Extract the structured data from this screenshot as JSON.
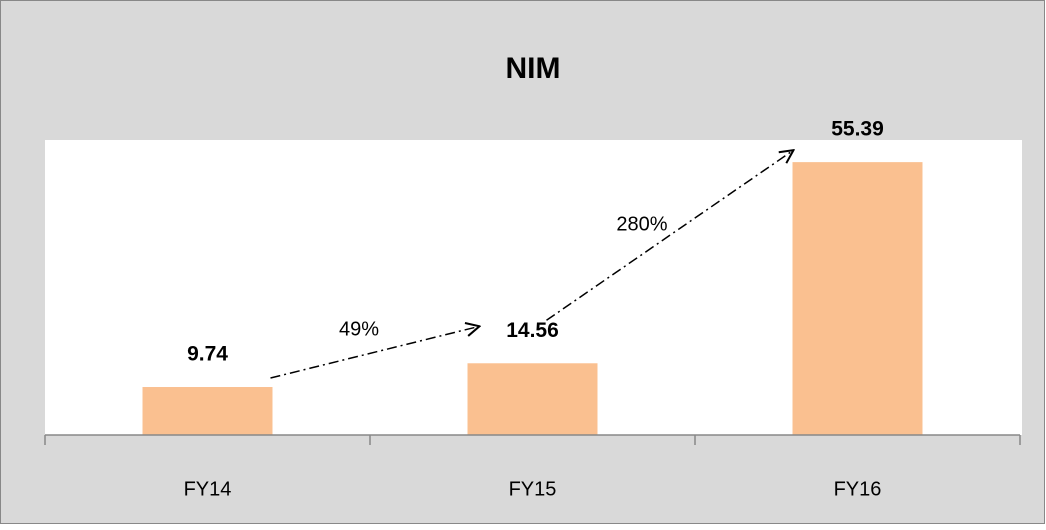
{
  "chart_data": {
    "type": "bar",
    "title": "NIM",
    "categories": [
      "FY14",
      "FY15",
      "FY16"
    ],
    "values": [
      9.74,
      14.56,
      55.39
    ],
    "color": "#fac090",
    "annotations": [
      "49%",
      "280%"
    ]
  }
}
